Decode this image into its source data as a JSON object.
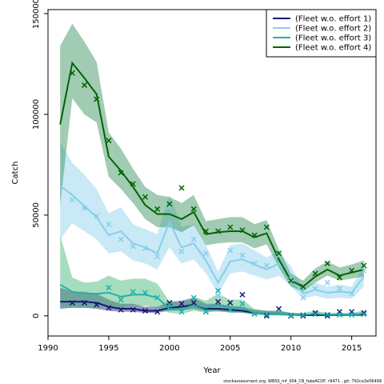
{
  "footer": "stockassessment.org, WBSS_mf_004_CB_fakeACDF, r9471 , git: 792ca3e56499",
  "chart_data": {
    "type": "line",
    "xlabel": "Year",
    "ylabel": "Catch",
    "xlim": [
      1990,
      2017
    ],
    "ylim": [
      -10000,
      152000
    ],
    "xticks": [
      1990,
      1995,
      2000,
      2005,
      2010,
      2015
    ],
    "yticks": [
      0,
      50000,
      100000,
      150000
    ],
    "legend_position": "top-right",
    "grid": false,
    "x": [
      1991,
      1992,
      1993,
      1994,
      1995,
      1996,
      1997,
      1998,
      1999,
      2000,
      2001,
      2002,
      2003,
      2004,
      2005,
      2006,
      2007,
      2008,
      2009,
      2010,
      2011,
      2012,
      2013,
      2014,
      2015,
      2016
    ],
    "series": [
      {
        "name": "(Fleet w.o. effort 1)",
        "color": "#191970",
        "band_color": "#191970",
        "values": [
          7000,
          7000,
          7000,
          6500,
          4500,
          3500,
          3500,
          2500,
          2500,
          4000,
          4500,
          5500,
          3500,
          3500,
          3000,
          2500,
          1500,
          1000,
          1000,
          500,
          300,
          300,
          300,
          300,
          400,
          500
        ],
        "lower": [
          3500,
          4000,
          4000,
          3500,
          2500,
          2000,
          2000,
          1500,
          1500,
          2500,
          2800,
          3500,
          2200,
          2200,
          1800,
          1500,
          800,
          400,
          400,
          100,
          50,
          50,
          50,
          50,
          80,
          100
        ],
        "upper": [
          14000,
          12000,
          12000,
          11000,
          8000,
          6000,
          6000,
          4500,
          4500,
          7000,
          7500,
          9000,
          6000,
          6000,
          5000,
          4500,
          3000,
          2500,
          2500,
          1500,
          1000,
          1000,
          1000,
          1000,
          1200,
          1500
        ],
        "observed": [
          null,
          6500,
          6500,
          5500,
          4000,
          3000,
          3000,
          2500,
          2000,
          6500,
          6000,
          6500,
          2000,
          7000,
          6500,
          10500,
          1000,
          0,
          3500,
          0,
          0,
          1500,
          0,
          2000,
          2000,
          1500
        ]
      },
      {
        "name": "(Fleet w.o. effort 2)",
        "color": "#87CEEB",
        "band_color": "#87CEEB",
        "values": [
          64500,
          60000,
          54500,
          49000,
          40000,
          42000,
          36000,
          34000,
          31000,
          46500,
          34000,
          36000,
          27500,
          16500,
          27000,
          28000,
          25500,
          23000,
          26000,
          19000,
          11000,
          13000,
          11500,
          12000,
          11500,
          19500
        ],
        "lower": [
          38000,
          46000,
          42000,
          38000,
          31000,
          32000,
          27500,
          26000,
          23000,
          34000,
          26000,
          28000,
          21000,
          11000,
          21000,
          22000,
          20000,
          18000,
          20000,
          14500,
          8500,
          10000,
          8500,
          9000,
          8500,
          14500
        ],
        "upper": [
          86000,
          76000,
          70000,
          63000,
          51000,
          54000,
          45500,
          43000,
          40500,
          60000,
          44000,
          45500,
          35000,
          22000,
          35000,
          36000,
          32500,
          29000,
          32500,
          24500,
          14000,
          16500,
          14500,
          15500,
          14500,
          25000
        ],
        "observed": [
          null,
          57500,
          53500,
          49500,
          45500,
          38000,
          34500,
          33500,
          29500,
          54000,
          32000,
          38000,
          31000,
          10000,
          32500,
          30000,
          26000,
          25000,
          30000,
          18000,
          9000,
          13500,
          16500,
          13500,
          11000,
          22500
        ]
      },
      {
        "name": "(Fleet w.o. effort 3)",
        "color": "#20B2AA",
        "band_color": "#3CB371",
        "values": [
          15500,
          12000,
          11000,
          11000,
          11500,
          9500,
          10500,
          10500,
          9000,
          3500,
          3000,
          5500,
          4000,
          5500,
          4000,
          4000,
          1500,
          1000,
          1000,
          500,
          500,
          1000,
          500,
          500,
          500,
          1000
        ],
        "lower": [
          5000,
          4000,
          4000,
          4000,
          4500,
          4000,
          5000,
          5000,
          4000,
          1500,
          1000,
          2500,
          1500,
          2500,
          1500,
          1500,
          500,
          200,
          200,
          100,
          100,
          200,
          100,
          100,
          100,
          200
        ],
        "upper": [
          40000,
          19000,
          16500,
          17000,
          20000,
          17500,
          18500,
          18500,
          16000,
          7000,
          6000,
          9500,
          7500,
          11000,
          8000,
          8000,
          3500,
          2500,
          2500,
          1500,
          1500,
          2500,
          1500,
          1500,
          1500,
          2500
        ],
        "observed": [
          null,
          null,
          null,
          null,
          14000,
          8000,
          12000,
          11500,
          9000,
          5500,
          2000,
          9000,
          2000,
          12500,
          3000,
          6000,
          1000,
          800,
          1500,
          300,
          500,
          800,
          700,
          500,
          500,
          800
        ]
      },
      {
        "name": "(Fleet w.o. effort 4)",
        "color": "#006400",
        "band_color": "#2E8B57",
        "values": [
          95000,
          125500,
          118000,
          110000,
          79000,
          72000,
          64000,
          55000,
          50500,
          50500,
          48000,
          51500,
          40500,
          41500,
          42000,
          42000,
          39000,
          41000,
          28000,
          17500,
          14500,
          19500,
          23000,
          20000,
          21500,
          23000
        ],
        "lower": [
          55000,
          108000,
          100000,
          96000,
          69000,
          63000,
          56000,
          48000,
          44000,
          44000,
          41500,
          45000,
          35000,
          36000,
          36500,
          36500,
          33500,
          35500,
          24000,
          14500,
          12000,
          16500,
          20000,
          17500,
          18500,
          19500
        ],
        "upper": [
          134000,
          145000,
          136000,
          126000,
          91000,
          83000,
          73000,
          64000,
          60000,
          59000,
          56000,
          60000,
          47000,
          48000,
          49000,
          49000,
          45500,
          47500,
          33000,
          21000,
          17500,
          23500,
          27000,
          24000,
          25500,
          27500
        ],
        "observed": [
          null,
          120500,
          114500,
          107500,
          87000,
          71000,
          65500,
          59000,
          53000,
          55500,
          63500,
          53000,
          42000,
          42000,
          44000,
          42500,
          40000,
          44000,
          31000,
          17500,
          14500,
          21000,
          26000,
          19000,
          22500,
          25000
        ]
      }
    ]
  }
}
